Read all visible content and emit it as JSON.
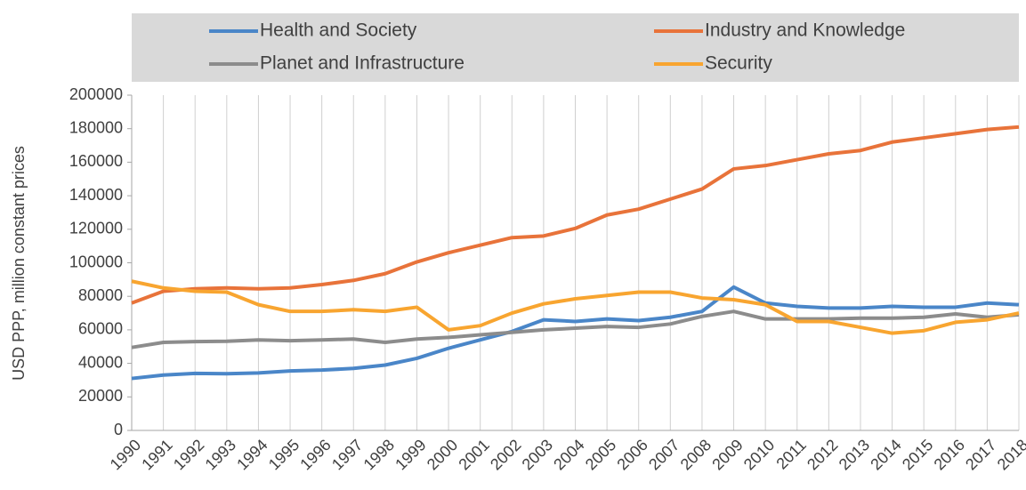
{
  "chart_data": {
    "type": "line",
    "y_label": "USD PPP, million constant prices",
    "x": [
      1990,
      1991,
      1992,
      1993,
      1994,
      1995,
      1996,
      1997,
      1998,
      1999,
      2000,
      2001,
      2002,
      2003,
      2004,
      2005,
      2006,
      2007,
      2008,
      2009,
      2010,
      2011,
      2012,
      2013,
      2014,
      2015,
      2016,
      2017,
      2018
    ],
    "xlim": [
      1990,
      2018
    ],
    "ylim": [
      0,
      200000
    ],
    "yticks": [
      0,
      20000,
      40000,
      60000,
      80000,
      100000,
      120000,
      140000,
      160000,
      180000,
      200000
    ],
    "grid": "x",
    "legend": "top",
    "series": [
      {
        "name": "Health and Society",
        "color": "#4a86c8",
        "values": [
          31000,
          33000,
          34000,
          33800,
          34300,
          35500,
          36000,
          37000,
          39000,
          43000,
          49000,
          54000,
          59000,
          66000,
          65000,
          66500,
          65500,
          67500,
          71000,
          85500,
          76000,
          74000,
          73000,
          73000,
          74000,
          73500,
          73500,
          76000,
          75000
        ]
      },
      {
        "name": "Industry and Knowledge",
        "color": "#e8733a",
        "values": [
          76000,
          83000,
          84500,
          85000,
          84500,
          85000,
          87000,
          89500,
          93500,
          100500,
          106000,
          110500,
          115000,
          116000,
          120500,
          128500,
          132000,
          138000,
          144000,
          156000,
          158000,
          161500,
          165000,
          167000,
          172000,
          174500,
          177000,
          179500,
          181000
        ]
      },
      {
        "name": "Planet and Infrastructure",
        "color": "#8c8c8c",
        "values": [
          49500,
          52500,
          53000,
          53200,
          54000,
          53500,
          54000,
          54500,
          52500,
          54500,
          55500,
          57000,
          58500,
          60000,
          61000,
          62000,
          61500,
          63500,
          68000,
          71000,
          66500,
          66500,
          66500,
          67000,
          67000,
          67500,
          69500,
          67500,
          69000
        ]
      },
      {
        "name": "Security",
        "color": "#f8a530",
        "values": [
          89000,
          85000,
          83000,
          82500,
          75000,
          71000,
          71000,
          72000,
          71000,
          73500,
          60000,
          62500,
          70000,
          75500,
          78500,
          80500,
          82500,
          82500,
          79000,
          78000,
          75000,
          65000,
          65000,
          61500,
          58000,
          59500,
          64500,
          66000,
          70000
        ]
      }
    ]
  }
}
